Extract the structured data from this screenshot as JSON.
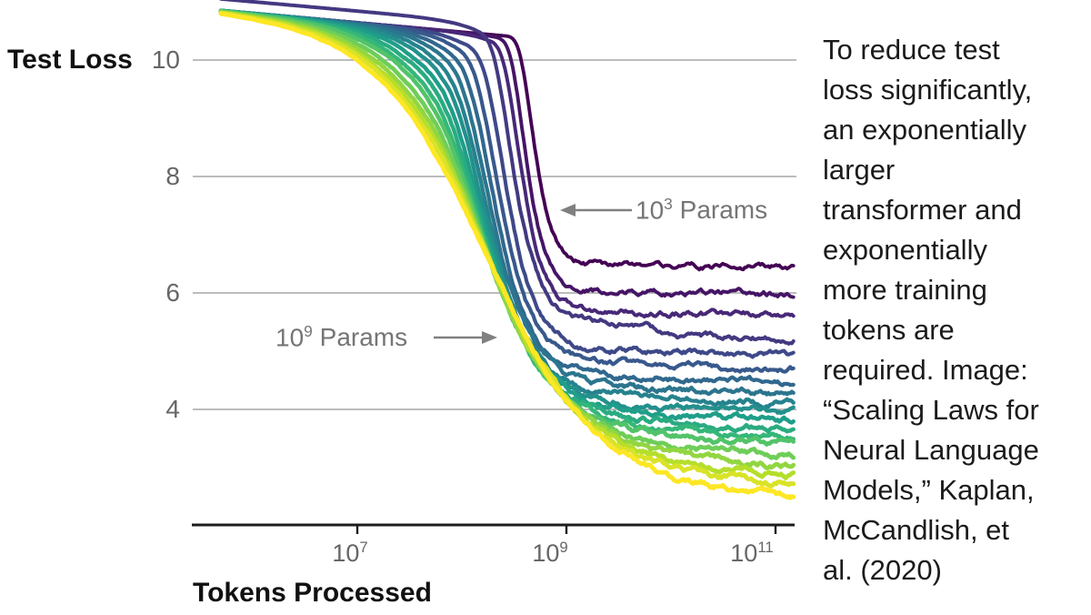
{
  "caption": {
    "lines": [
      "To reduce test",
      "loss significantly,",
      "an exponentially",
      "larger",
      "transformer and",
      "exponentially",
      "more training",
      "tokens are",
      "required. Image:",
      "“Scaling Laws for",
      "Neural Language",
      "Models,” Kaplan,",
      "McCandlish, et",
      "al. (2020)"
    ]
  },
  "chart_data": {
    "type": "line",
    "title": "",
    "xlabel": "Tokens Processed",
    "ylabel": "Test Loss",
    "x_scale": "log10",
    "x_range_log10": [
      5.43,
      11.17
    ],
    "ylim": [
      2.0,
      11.0
    ],
    "grid": "horizontal only",
    "y_gridlines": [
      10,
      8,
      6,
      4
    ],
    "y_tick_labels": [
      "10",
      "8",
      "6",
      "4"
    ],
    "x_ticks": [
      {
        "base": "10",
        "exp": "7",
        "log10_tokens": 7
      },
      {
        "base": "10",
        "exp": "9",
        "log10_tokens": 9
      },
      {
        "base": "10",
        "exp": "11",
        "log10_tokens": 11
      }
    ],
    "annotations": [
      {
        "base": "10",
        "exp": "3",
        "word": "Params",
        "arrow": "left",
        "points_to": "darkest purple curve (smallest model)"
      },
      {
        "base": "10",
        "exp": "9",
        "word": "Params",
        "arrow": "right",
        "points_to": "brightest yellow curve (largest model)"
      }
    ],
    "colormap": "viridis: dark purple = 10^3 params, yellow = 10^9 params",
    "common_start": {
      "log10_tokens": 5.7,
      "loss": 10.85
    },
    "note": "All learning curves start together near loss 10.9; each model size descends in an S-shape and plateaus at its final test loss. Larger (yellower) models descend at fewer tokens and reach lower loss.",
    "series": [
      {
        "params_log10": 3.0,
        "color": "#440154",
        "final_loss": 6.45,
        "knee_log10_tokens": 8.66,
        "transition_width": 0.15
      },
      {
        "params_log10": 3.33,
        "color": "#461566",
        "final_loss": 5.98,
        "knee_log10_tokens": 8.58,
        "transition_width": 0.16
      },
      {
        "params_log10": 3.67,
        "color": "#482878",
        "final_loss": 5.61,
        "knee_log10_tokens": 8.53,
        "transition_width": 0.18
      },
      {
        "params_log10": 4.0,
        "color": "#433981",
        "final_loss": 5.22,
        "knee_log10_tokens": 8.45,
        "transition_width": 0.2,
        "step": {
          "log10_tokens": 9.85,
          "drop": 0.2
        }
      },
      {
        "params_log10": 4.33,
        "color": "#3e4989",
        "final_loss": 4.94,
        "knee_log10_tokens": 8.38,
        "transition_width": 0.22
      },
      {
        "params_log10": 4.67,
        "color": "#38598c",
        "final_loss": 4.7,
        "knee_log10_tokens": 8.31,
        "transition_width": 0.24
      },
      {
        "params_log10": 5.0,
        "color": "#31688e",
        "final_loss": 4.45,
        "knee_log10_tokens": 8.26,
        "transition_width": 0.26
      },
      {
        "params_log10": 5.33,
        "color": "#2c758e",
        "final_loss": 4.27,
        "knee_log10_tokens": 8.22,
        "transition_width": 0.28
      },
      {
        "params_log10": 5.67,
        "color": "#26828e",
        "final_loss": 4.11,
        "knee_log10_tokens": 8.19,
        "transition_width": 0.3
      },
      {
        "params_log10": 6.0,
        "color": "#23908c",
        "final_loss": 3.95,
        "knee_log10_tokens": 8.17,
        "transition_width": 0.32
      },
      {
        "params_log10": 6.33,
        "color": "#1f9e89",
        "final_loss": 3.81,
        "knee_log10_tokens": 8.15,
        "transition_width": 0.34
      },
      {
        "params_log10": 6.67,
        "color": "#2aab81",
        "final_loss": 3.66,
        "knee_log10_tokens": 8.14,
        "transition_width": 0.36
      },
      {
        "params_log10": 7.0,
        "color": "#35b779",
        "final_loss": 3.53,
        "knee_log10_tokens": 8.13,
        "transition_width": 0.38
      },
      {
        "params_log10": 7.33,
        "color": "#52c369",
        "final_loss": 3.41,
        "knee_log10_tokens": 8.13,
        "transition_width": 0.4
      },
      {
        "params_log10": 7.67,
        "color": "#6ece58",
        "final_loss": 3.22,
        "knee_log10_tokens": 8.14,
        "transition_width": 0.43
      },
      {
        "params_log10": 8.0,
        "color": "#92d642",
        "final_loss": 3.02,
        "knee_log10_tokens": 8.16,
        "transition_width": 0.46
      },
      {
        "params_log10": 8.33,
        "color": "#b5de2b",
        "final_loss": 2.86,
        "knee_log10_tokens": 8.18,
        "transition_width": 0.48
      },
      {
        "params_log10": 8.67,
        "color": "#d9e328",
        "final_loss": 2.7,
        "knee_log10_tokens": 8.21,
        "transition_width": 0.5
      },
      {
        "params_log10": 9.0,
        "color": "#fde725",
        "final_loss": 2.48,
        "knee_log10_tokens": 8.24,
        "transition_width": 0.52
      }
    ]
  },
  "style_colors": {
    "gridline": "#a6a6a6",
    "axis": "#1c1c1c",
    "tick_label": "#666666",
    "annotation": "#757575",
    "caption_text": "#1b1b1b"
  }
}
